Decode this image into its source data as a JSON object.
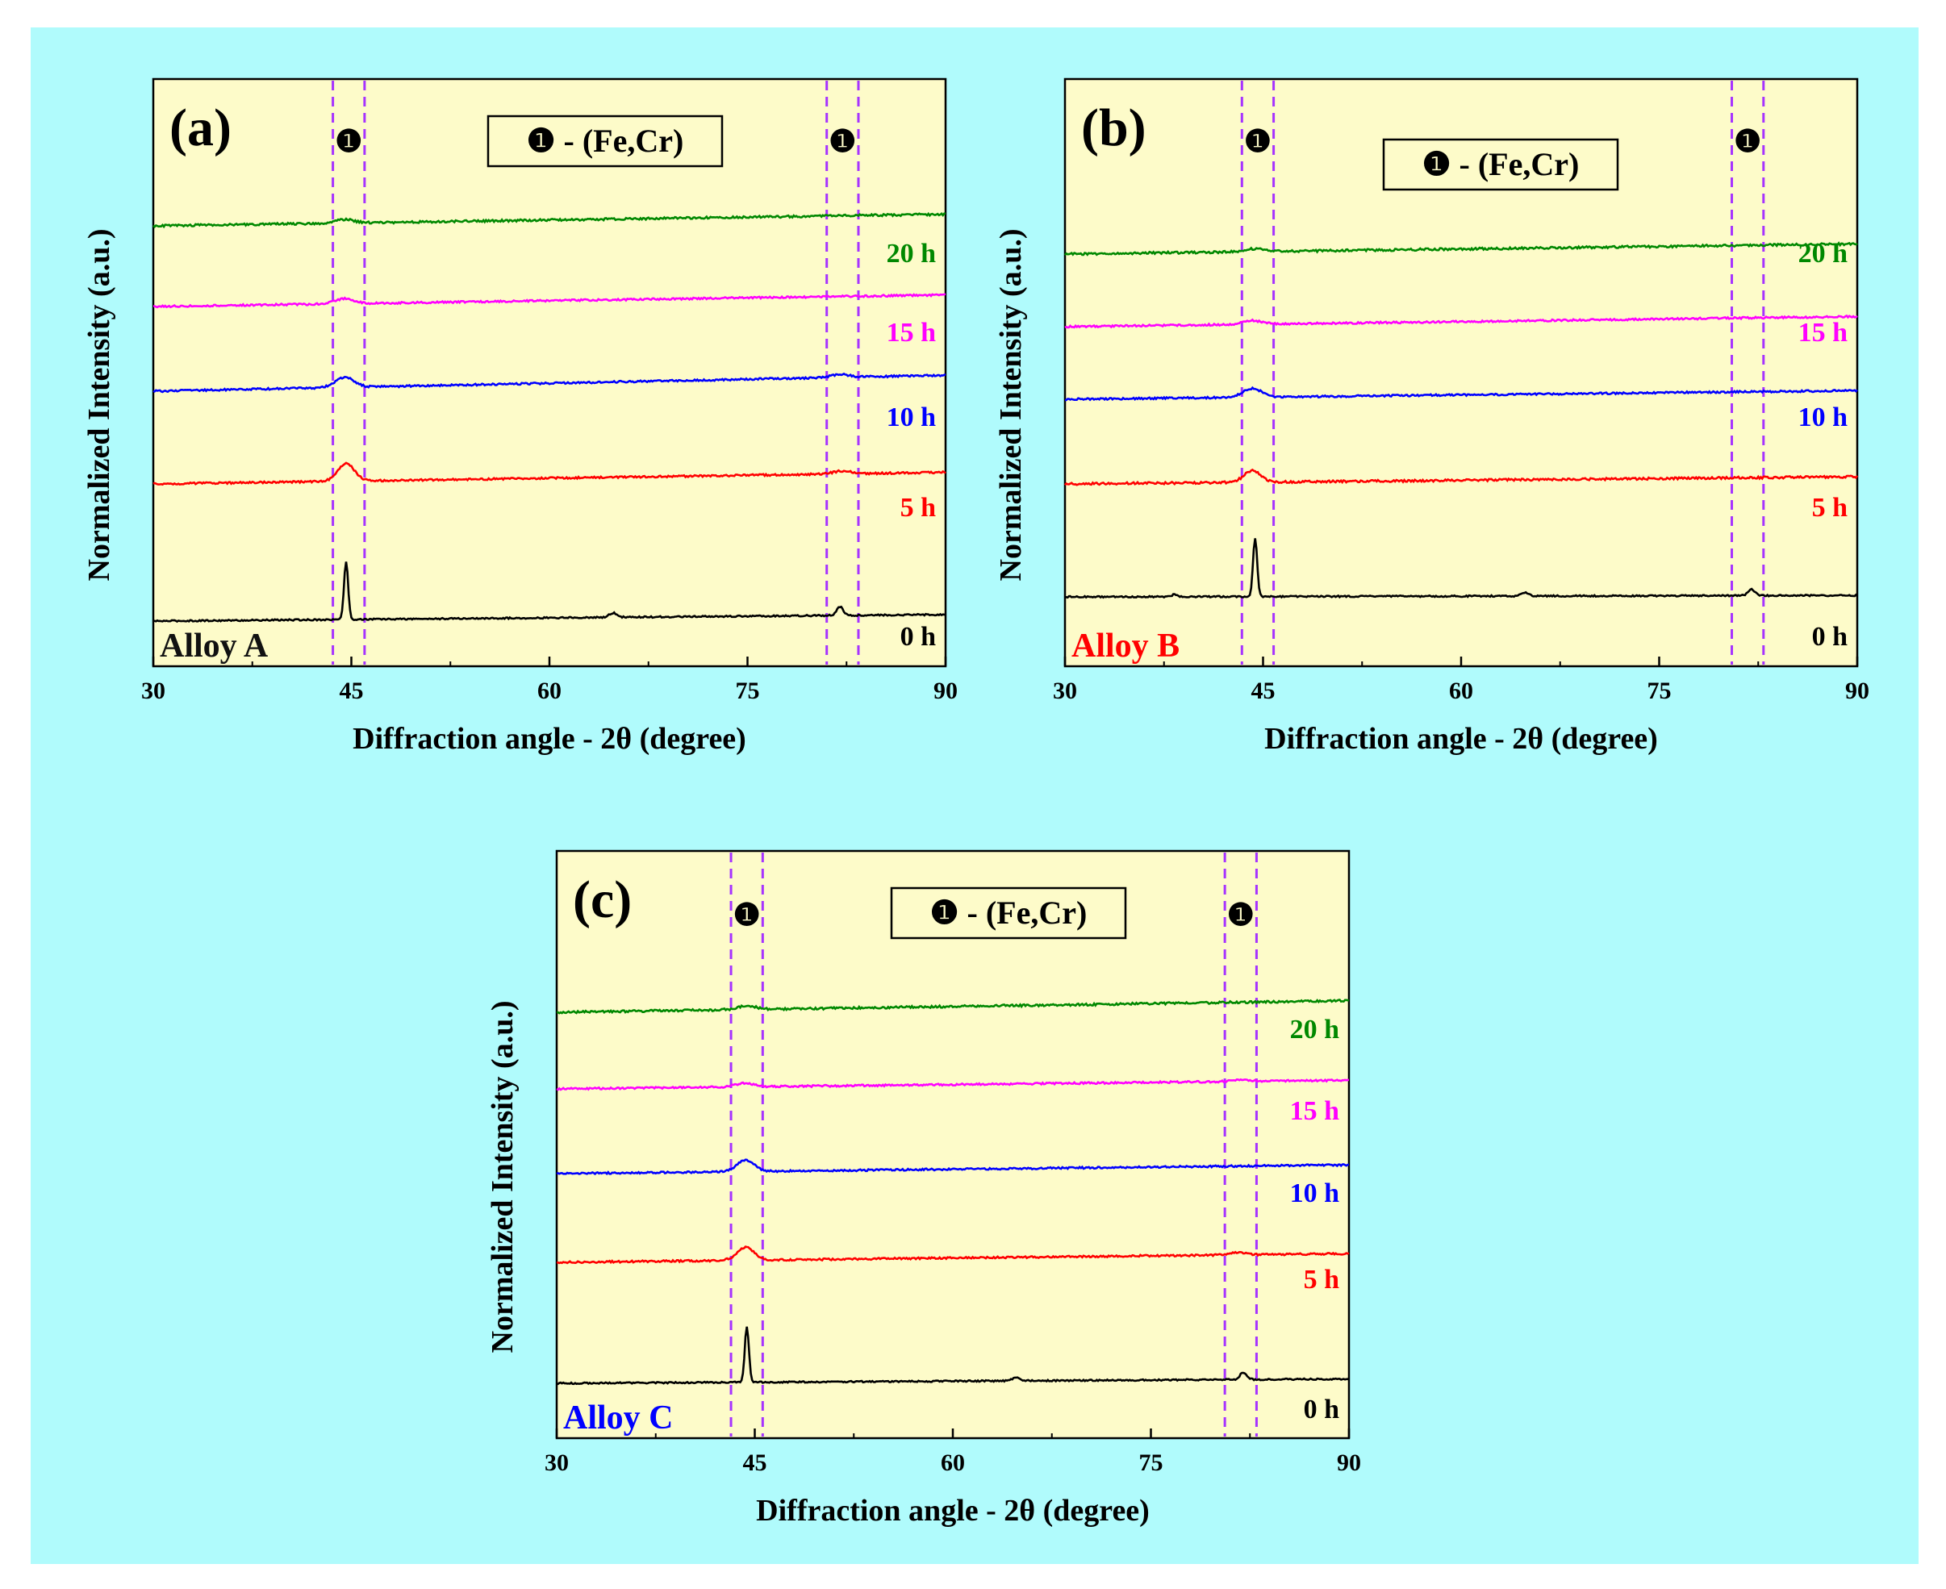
{
  "figure": {
    "background_color": "#b0fbfc",
    "plot_background_color": "#fdfbc9",
    "marker_line_color": "#a633ff"
  },
  "chart_data": [
    {
      "type": "line",
      "panel_label": "(a)",
      "alloy_label": "Alloy A",
      "alloy_label_color": "#111111",
      "legend": {
        "symbol": "❶",
        "text": " - (Fe,Cr)"
      },
      "peak_marker_symbol": "❶",
      "xlabel": "Diffraction angle - 2θ (degree)",
      "ylabel": "Normalized Intensity (a.u.)",
      "xlim": [
        30,
        90
      ],
      "xticks": [
        30,
        45,
        60,
        75,
        90
      ],
      "xtick_labels": [
        "30",
        "45",
        "60",
        "75",
        "90"
      ],
      "ylim": [
        0,
        1
      ],
      "marker_bands": [
        [
          43.6,
          46.0
        ],
        [
          81.0,
          83.4
        ]
      ],
      "series": [
        {
          "name": "0 h",
          "color": "#000000",
          "baseline": 0.12,
          "slope": 0.045,
          "noise": 0.004,
          "peaks": [
            {
              "x": 44.6,
              "h": 0.4,
              "w": 0.22
            },
            {
              "x": 64.8,
              "h": 0.03,
              "w": 0.4
            },
            {
              "x": 82.0,
              "h": 0.06,
              "w": 0.35
            }
          ]
        },
        {
          "name": "5 h",
          "color": "#ff0000",
          "baseline": 0.355,
          "slope": 0.08,
          "noise": 0.005,
          "peaks": [
            {
              "x": 44.6,
              "h": 0.12,
              "w": 0.9
            },
            {
              "x": 82.2,
              "h": 0.02,
              "w": 1.0
            }
          ]
        },
        {
          "name": "10 h",
          "color": "#0000ff",
          "baseline": 0.555,
          "slope": 0.11,
          "noise": 0.005,
          "peaks": [
            {
              "x": 44.5,
              "h": 0.07,
              "w": 1.0
            },
            {
              "x": 82.0,
              "h": 0.02,
              "w": 1.0
            }
          ]
        },
        {
          "name": "15 h",
          "color": "#ff00ff",
          "baseline": 0.755,
          "slope": 0.08,
          "noise": 0.005,
          "peaks": [
            {
              "x": 44.5,
              "h": 0.035,
              "w": 1.0
            }
          ]
        },
        {
          "name": "20 h",
          "color": "#008800",
          "baseline": 0.95,
          "slope": 0.08,
          "noise": 0.006,
          "peaks": [
            {
              "x": 44.5,
              "h": 0.025,
              "w": 1.0
            }
          ]
        }
      ]
    },
    {
      "type": "line",
      "panel_label": "(b)",
      "alloy_label": "Alloy B",
      "alloy_label_color": "#ff0000",
      "legend": {
        "symbol": "❶",
        "text": " - (Fe,Cr)"
      },
      "peak_marker_symbol": "❶",
      "xlabel": "Diffraction angle - 2θ (degree)",
      "ylabel": "Normalized Intensity (a.u.)",
      "xlim": [
        30,
        90
      ],
      "xticks": [
        30,
        45,
        60,
        75,
        90
      ],
      "xtick_labels": [
        "30",
        "45",
        "60",
        "75",
        "90"
      ],
      "ylim": [
        0,
        1
      ],
      "marker_bands": [
        [
          43.4,
          45.8
        ],
        [
          80.5,
          82.9
        ]
      ],
      "series": [
        {
          "name": "0 h",
          "color": "#000000",
          "baseline": 0.17,
          "slope": 0.01,
          "noise": 0.004,
          "peaks": [
            {
              "x": 44.4,
              "h": 0.4,
              "w": 0.22
            },
            {
              "x": 38.3,
              "h": 0.015,
              "w": 0.3
            },
            {
              "x": 64.8,
              "h": 0.025,
              "w": 0.4
            },
            {
              "x": 82.0,
              "h": 0.045,
              "w": 0.35
            }
          ]
        },
        {
          "name": "5 h",
          "color": "#ff0000",
          "baseline": 0.385,
          "slope": 0.05,
          "noise": 0.006,
          "peaks": [
            {
              "x": 44.2,
              "h": 0.08,
              "w": 0.9
            }
          ]
        },
        {
          "name": "10 h",
          "color": "#0000ff",
          "baseline": 0.595,
          "slope": 0.06,
          "noise": 0.005,
          "peaks": [
            {
              "x": 44.2,
              "h": 0.06,
              "w": 1.0
            }
          ]
        },
        {
          "name": "15 h",
          "color": "#ff00ff",
          "baseline": 0.81,
          "slope": 0.07,
          "noise": 0.005,
          "peaks": [
            {
              "x": 44.2,
              "h": 0.025,
              "w": 1.0
            }
          ]
        },
        {
          "name": "20 h",
          "color": "#008800",
          "baseline": 1.0,
          "slope": 0.07,
          "noise": 0.006,
          "peaks": [
            {
              "x": 44.3,
              "h": 0.02,
              "w": 1.0
            }
          ]
        }
      ]
    },
    {
      "type": "line",
      "panel_label": "(c)",
      "alloy_label": "Alloy C",
      "alloy_label_color": "#0000ff",
      "legend": {
        "symbol": "❶",
        "text": " - (Fe,Cr)"
      },
      "peak_marker_symbol": "❶",
      "xlabel": "Diffraction angle - 2θ (degree)",
      "ylabel": "Normalized Intensity (a.u.)",
      "xlim": [
        30,
        90
      ],
      "xticks": [
        30,
        45,
        60,
        75,
        90
      ],
      "xtick_labels": [
        "30",
        "45",
        "60",
        "75",
        "90"
      ],
      "ylim": [
        0,
        1
      ],
      "marker_bands": [
        [
          43.2,
          45.6
        ],
        [
          80.6,
          83.0
        ]
      ],
      "series": [
        {
          "name": "0 h",
          "color": "#000000",
          "baseline": 0.095,
          "slope": 0.03,
          "noise": 0.004,
          "peaks": [
            {
              "x": 44.4,
              "h": 0.38,
              "w": 0.22
            },
            {
              "x": 64.8,
              "h": 0.025,
              "w": 0.4
            },
            {
              "x": 82.0,
              "h": 0.05,
              "w": 0.35
            }
          ]
        },
        {
          "name": "5 h",
          "color": "#ff0000",
          "baseline": 0.345,
          "slope": 0.06,
          "noise": 0.005,
          "peaks": [
            {
              "x": 44.3,
              "h": 0.09,
              "w": 0.9
            },
            {
              "x": 81.5,
              "h": 0.015,
              "w": 1.0
            }
          ]
        },
        {
          "name": "10 h",
          "color": "#0000ff",
          "baseline": 0.575,
          "slope": 0.06,
          "noise": 0.005,
          "peaks": [
            {
              "x": 44.3,
              "h": 0.08,
              "w": 0.9
            }
          ]
        },
        {
          "name": "15 h",
          "color": "#ff00ff",
          "baseline": 0.795,
          "slope": 0.06,
          "noise": 0.005,
          "peaks": [
            {
              "x": 44.2,
              "h": 0.025,
              "w": 1.0
            },
            {
              "x": 82.0,
              "h": 0.01,
              "w": 1.0
            }
          ]
        },
        {
          "name": "20 h",
          "color": "#008800",
          "baseline": 1.0,
          "slope": 0.08,
          "noise": 0.006,
          "peaks": [
            {
              "x": 44.4,
              "h": 0.025,
              "w": 1.0
            }
          ]
        }
      ]
    }
  ]
}
